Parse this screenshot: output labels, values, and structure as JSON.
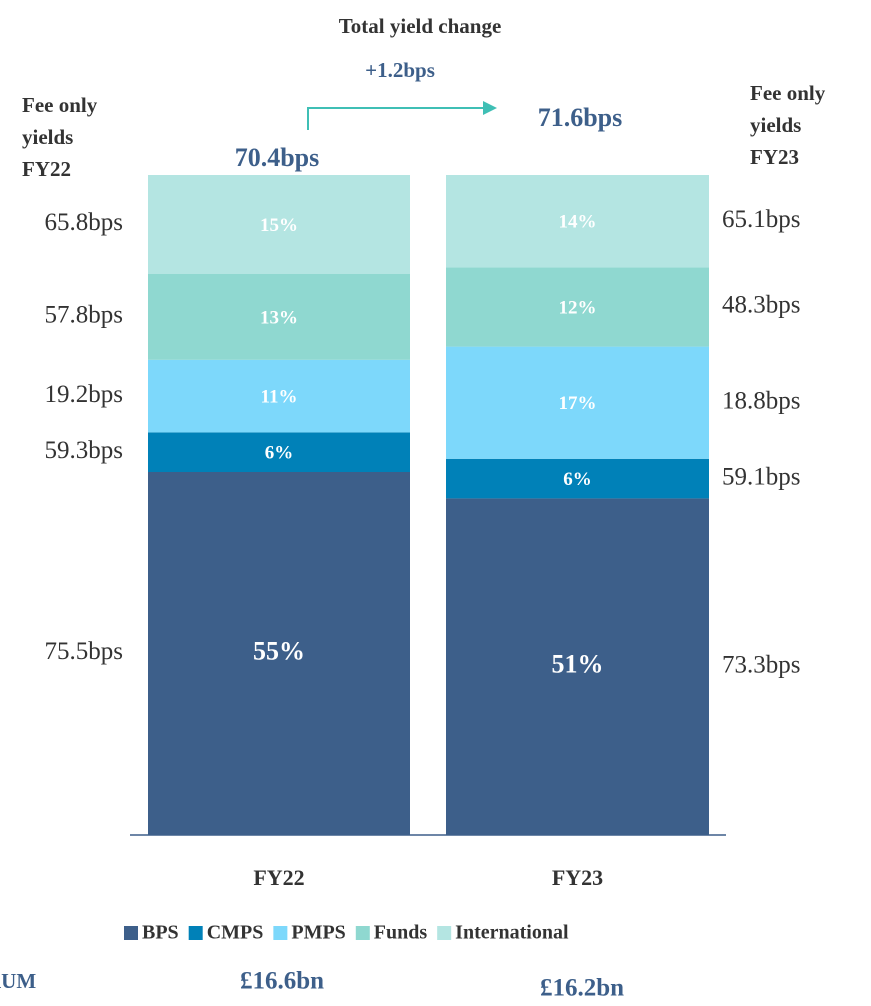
{
  "chart_data": {
    "type": "stacked_bar",
    "title": "Total  yield change",
    "subtitle": "+1.2bps",
    "categories": [
      "FY22",
      "FY23"
    ],
    "ylim": [
      0,
      100
    ],
    "totals": [
      "70.4bps",
      "71.6bps"
    ],
    "yield_headers": [
      [
        "Fee only",
        "yields",
        "FY22"
      ],
      [
        "Fee only",
        "yields",
        "FY23"
      ]
    ],
    "series": [
      {
        "name": "BPS",
        "color": "#3d5f8a",
        "values": [
          55,
          51
        ],
        "value_labels": [
          "55%",
          "51%"
        ],
        "yield_labels": [
          "75.5bps",
          "73.3bps"
        ]
      },
      {
        "name": "CMPS",
        "color": "#0081b8",
        "values": [
          6,
          6
        ],
        "value_labels": [
          "6%",
          "6%"
        ],
        "yield_labels": [
          "59.3bps",
          "59.1bps"
        ]
      },
      {
        "name": "PMPS",
        "color": "#7dd8fb",
        "values": [
          11,
          17
        ],
        "value_labels": [
          "11%",
          "17%"
        ],
        "yield_labels": [
          "19.2bps",
          "18.8bps"
        ]
      },
      {
        "name": "Funds",
        "color": "#8fd8d0",
        "values": [
          13,
          12
        ],
        "value_labels": [
          "13%",
          "12%"
        ],
        "yield_labels": [
          "57.8bps",
          "48.3bps"
        ]
      },
      {
        "name": "International",
        "color": "#b4e5e2",
        "values": [
          15,
          14
        ],
        "value_labels": [
          "15%",
          "14%"
        ],
        "yield_labels": [
          "65.8bps",
          "65.1bps"
        ]
      }
    ],
    "aum_label": "AUM",
    "aum": [
      "£16.6bn",
      "£16.2bn"
    ]
  }
}
